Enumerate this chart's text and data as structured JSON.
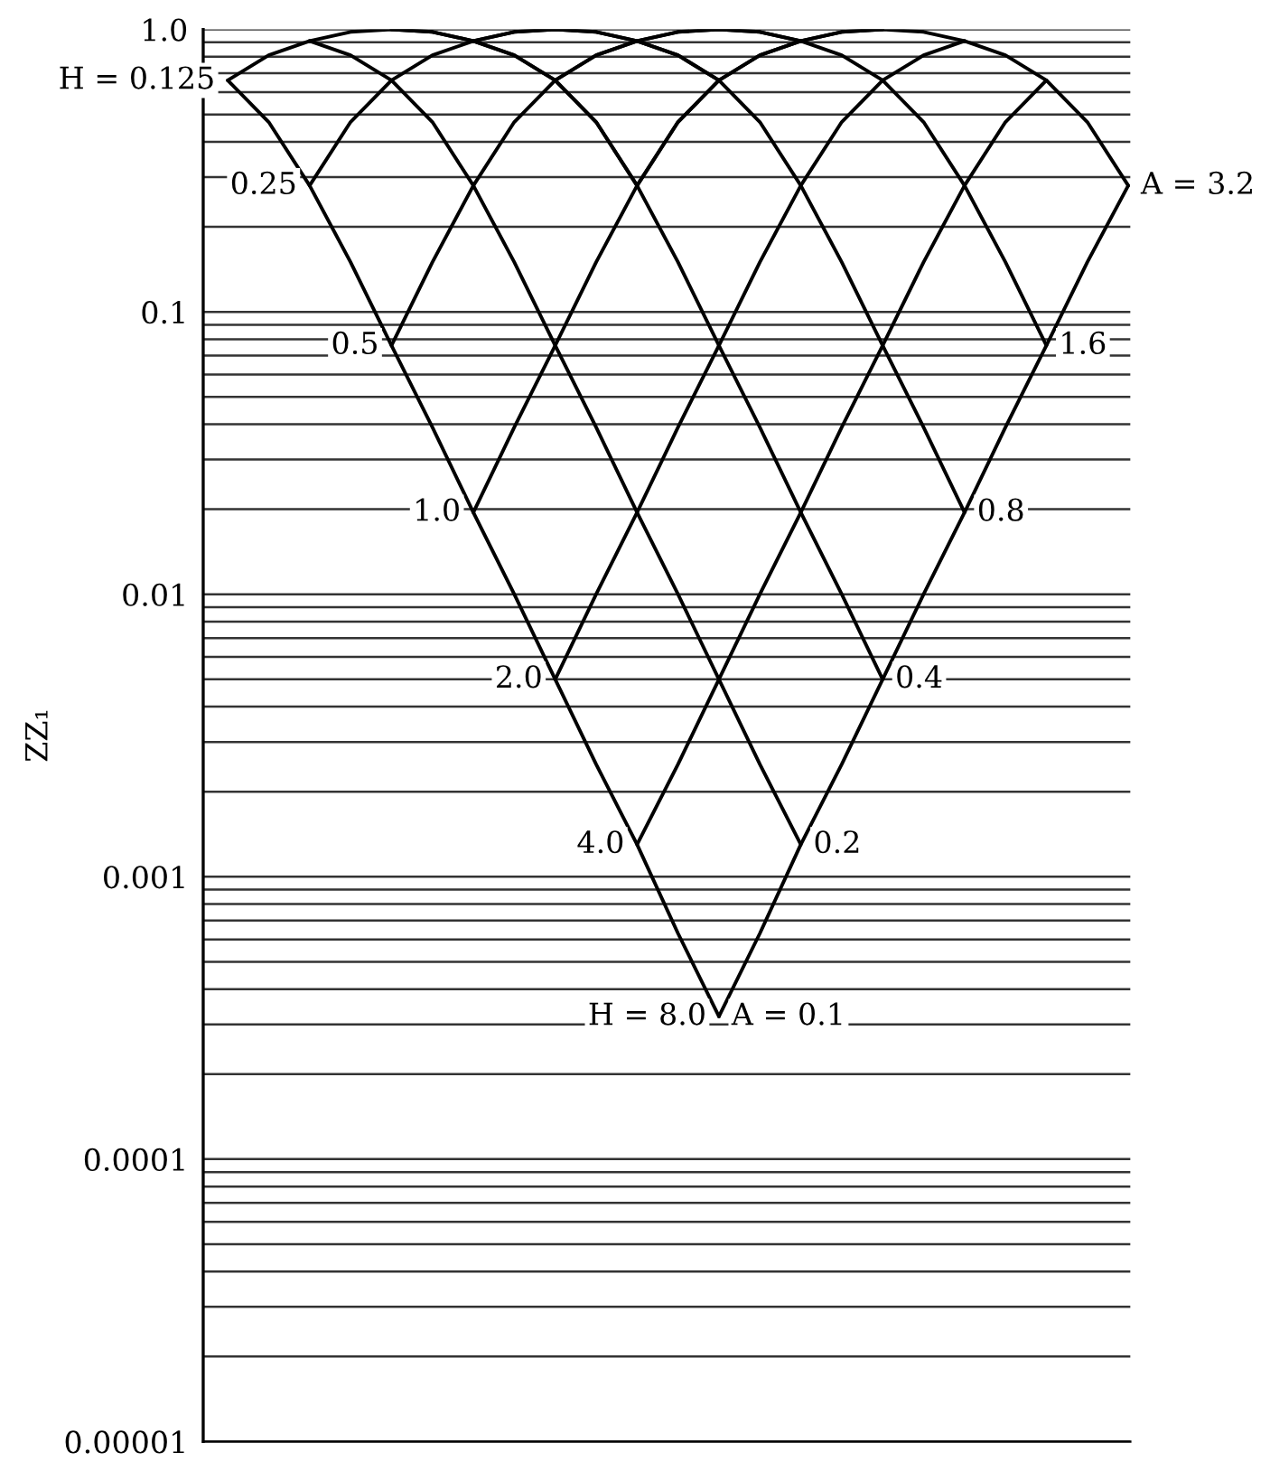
{
  "chart_data": {
    "type": "line",
    "ylabel": "ZZ₁",
    "log": true,
    "grid": "y",
    "tick_labels": "y",
    "categories": [
      null,
      null,
      null,
      null,
      null,
      null,
      null,
      null,
      null,
      null,
      null,
      null,
      null,
      null,
      null,
      null,
      null,
      null,
      null,
      null,
      null,
      null,
      null
    ],
    "ylim": [
      1e-05,
      1.0
    ],
    "yticks": [
      {
        "value": 1e-05,
        "label": "0.00001"
      },
      {
        "value": 2e-05,
        "label": null
      },
      {
        "value": 3e-05,
        "label": null
      },
      {
        "value": 4e-05,
        "label": null
      },
      {
        "value": 5e-05,
        "label": null
      },
      {
        "value": 6e-05,
        "label": null
      },
      {
        "value": 7e-05,
        "label": null
      },
      {
        "value": 8e-05,
        "label": null
      },
      {
        "value": 9e-05,
        "label": null
      },
      {
        "value": 0.0001,
        "label": "0.0001"
      },
      {
        "value": 0.0002,
        "label": null
      },
      {
        "value": 0.0003,
        "label": null
      },
      {
        "value": 0.0004,
        "label": null
      },
      {
        "value": 0.0005,
        "label": null
      },
      {
        "value": 0.0006,
        "label": null
      },
      {
        "value": 0.0007,
        "label": null
      },
      {
        "value": 0.0008,
        "label": null
      },
      {
        "value": 0.0009,
        "label": null
      },
      {
        "value": 0.001,
        "label": "0.001"
      },
      {
        "value": 0.002,
        "label": null
      },
      {
        "value": 0.003,
        "label": null
      },
      {
        "value": 0.004,
        "label": null
      },
      {
        "value": 0.005,
        "label": null
      },
      {
        "value": 0.006,
        "label": null
      },
      {
        "value": 0.007,
        "label": null
      },
      {
        "value": 0.008,
        "label": null
      },
      {
        "value": 0.009,
        "label": null
      },
      {
        "value": 0.01,
        "label": "0.01"
      },
      {
        "value": 0.02,
        "label": null
      },
      {
        "value": 0.03,
        "label": null
      },
      {
        "value": 0.04,
        "label": null
      },
      {
        "value": 0.05,
        "label": null
      },
      {
        "value": 0.06,
        "label": null
      },
      {
        "value": 0.07,
        "label": null
      },
      {
        "value": 0.08,
        "label": null
      },
      {
        "value": 0.09,
        "label": null
      },
      {
        "value": 0.1,
        "label": "0.1"
      },
      {
        "value": 0.2,
        "label": null
      },
      {
        "value": 0.3,
        "label": null
      },
      {
        "value": 0.4,
        "label": null
      },
      {
        "value": 0.5,
        "label": null
      },
      {
        "value": 0.6,
        "label": null
      },
      {
        "value": 0.7,
        "label": null
      },
      {
        "value": 0.8,
        "label": null
      },
      {
        "value": 0.9,
        "label": null
      },
      {
        "value": 1.0,
        "label": "1.0"
      }
    ],
    "series": [
      {
        "name": "H = 0.125",
        "color": "#000000",
        "values": [
          0.66,
          0.81,
          0.91,
          0.98,
          1.0,
          0.98,
          0.91,
          0.81,
          0.66,
          0.47,
          0.28,
          null,
          null,
          null,
          null,
          null,
          null,
          null,
          null,
          null,
          null,
          null,
          null
        ]
      },
      {
        "name": "0.25",
        "color": "#000000",
        "values": [
          null,
          null,
          0.28,
          0.47,
          0.66,
          0.81,
          0.91,
          0.98,
          1.0,
          0.98,
          0.91,
          0.81,
          0.66,
          null,
          null,
          null,
          null,
          null,
          null,
          null,
          null,
          null,
          null
        ]
      },
      {
        "name": "0.5",
        "color": "#000000",
        "values": [
          null,
          null,
          null,
          null,
          0.076,
          0.15,
          0.28,
          0.47,
          0.66,
          0.81,
          0.91,
          0.98,
          1.0,
          0.98,
          0.91,
          null,
          null,
          null,
          null,
          null,
          null,
          null,
          null
        ]
      },
      {
        "name": "1.0",
        "color": "#000000",
        "values": [
          null,
          null,
          null,
          null,
          null,
          null,
          0.0195,
          0.039,
          0.076,
          0.15,
          0.28,
          0.47,
          0.66,
          0.81,
          0.91,
          0.98,
          1.0,
          null,
          null,
          null,
          null,
          null,
          null
        ]
      },
      {
        "name": "2.0",
        "color": "#000000",
        "values": [
          null,
          null,
          null,
          null,
          null,
          null,
          null,
          null,
          0.005,
          0.01,
          0.0195,
          0.039,
          0.076,
          0.15,
          0.28,
          0.47,
          0.66,
          0.81,
          0.91,
          null,
          null,
          null,
          null
        ]
      },
      {
        "name": "4.0",
        "color": "#000000",
        "values": [
          null,
          null,
          null,
          null,
          null,
          null,
          null,
          null,
          null,
          null,
          0.0013,
          0.0025,
          0.005,
          0.01,
          0.0195,
          0.039,
          0.076,
          0.15,
          0.28,
          0.47,
          0.66,
          null,
          null
        ]
      },
      {
        "name": "H = 8.0",
        "color": "#000000",
        "values": [
          null,
          null,
          null,
          null,
          null,
          null,
          null,
          null,
          null,
          null,
          null,
          null,
          0.00032,
          0.00063,
          0.0013,
          0.0025,
          0.005,
          0.01,
          0.0195,
          0.039,
          0.076,
          0.15,
          0.28
        ]
      },
      {
        "name": "A = 0.1",
        "color": "#000000",
        "values": [
          0.66,
          0.47,
          0.28,
          0.15,
          0.076,
          0.039,
          0.0195,
          0.01,
          0.005,
          0.0025,
          0.0013,
          0.00063,
          0.00032,
          null,
          null,
          null,
          null,
          null,
          null,
          null,
          null,
          null,
          null
        ]
      },
      {
        "name": "0.2",
        "color": "#000000",
        "values": [
          null,
          null,
          0.91,
          0.81,
          0.66,
          0.47,
          0.28,
          0.15,
          0.076,
          0.039,
          0.0195,
          0.01,
          0.005,
          0.0025,
          0.0013,
          null,
          null,
          null,
          null,
          null,
          null,
          null,
          null
        ]
      },
      {
        "name": "0.4",
        "color": "#000000",
        "values": [
          null,
          null,
          null,
          null,
          1.0,
          0.98,
          0.91,
          0.81,
          0.66,
          0.47,
          0.28,
          0.15,
          0.076,
          0.039,
          0.0195,
          0.01,
          0.005,
          null,
          null,
          null,
          null,
          null,
          null
        ]
      },
      {
        "name": "0.8",
        "color": "#000000",
        "values": [
          null,
          null,
          null,
          null,
          null,
          null,
          0.91,
          0.98,
          1.0,
          0.98,
          0.91,
          0.81,
          0.66,
          0.47,
          0.28,
          0.15,
          0.076,
          0.039,
          0.0195,
          null,
          null,
          null,
          null
        ]
      },
      {
        "name": "1.6",
        "color": "#000000",
        "values": [
          null,
          null,
          null,
          null,
          null,
          null,
          null,
          null,
          0.66,
          0.81,
          0.91,
          0.98,
          1.0,
          0.98,
          0.91,
          0.81,
          0.66,
          0.47,
          0.28,
          0.15,
          0.076,
          null,
          null
        ]
      },
      {
        "name": "A = 3.2",
        "color": "#000000",
        "values": [
          null,
          null,
          null,
          null,
          null,
          null,
          null,
          null,
          null,
          null,
          0.28,
          0.47,
          0.66,
          0.81,
          0.91,
          0.98,
          1.0,
          0.98,
          0.91,
          0.81,
          0.66,
          0.47,
          0.28
        ]
      }
    ]
  }
}
